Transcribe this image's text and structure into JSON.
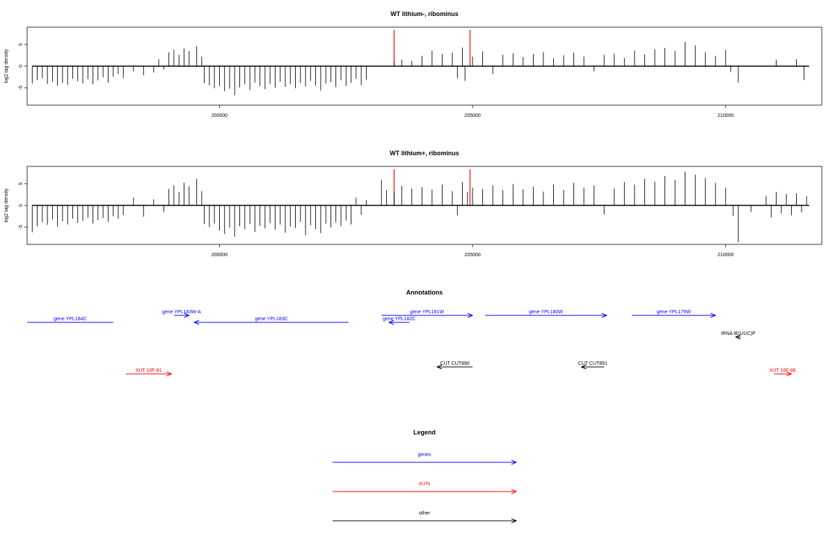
{
  "chart_data": [
    {
      "type": "bar",
      "title": "WT lithium-, ribominus",
      "xlabel": "",
      "ylabel": "log2 tag density",
      "xlim": [
        196200,
        211900
      ],
      "ylim": [
        -9,
        9
      ],
      "x_ticks": [
        200000,
        205000,
        210000
      ],
      "y_ticks": [
        5,
        0,
        -5
      ],
      "grid": false,
      "series": [
        {
          "bars": [
            [
              196300,
              -4
            ],
            [
              196400,
              -3.2
            ],
            [
              196500,
              -2.8
            ],
            [
              196600,
              -4.1
            ],
            [
              196700,
              -3.6
            ],
            [
              196800,
              -4.5
            ],
            [
              196900,
              -3.9
            ],
            [
              197000,
              -4.3
            ],
            [
              197100,
              -2.9
            ],
            [
              197200,
              -3.5
            ],
            [
              197300,
              -4
            ],
            [
              197400,
              -3
            ],
            [
              197500,
              -4.2
            ],
            [
              197600,
              -3.3
            ],
            [
              197700,
              -2.6
            ],
            [
              197800,
              -3.8
            ],
            [
              197900,
              -2.4
            ],
            [
              198000,
              -1.8
            ],
            [
              198100,
              -2.8
            ],
            [
              198300,
              -1.2
            ],
            [
              198500,
              -2.1
            ],
            [
              198700,
              -1.5
            ],
            [
              198900,
              -0.8
            ],
            [
              198800,
              1.6
            ],
            [
              199000,
              3.2
            ],
            [
              199100,
              3.8
            ],
            [
              199200,
              2.6
            ],
            [
              199300,
              4.1
            ],
            [
              199400,
              3.5
            ],
            [
              199550,
              4.6
            ],
            [
              199650,
              2.2
            ],
            [
              199700,
              -3.9
            ],
            [
              199800,
              -4.4
            ],
            [
              199900,
              -5.1
            ],
            [
              200000,
              -4.6
            ],
            [
              200100,
              -5.8
            ],
            [
              200200,
              -5.2
            ],
            [
              200300,
              -6.7
            ],
            [
              200400,
              -4.9
            ],
            [
              200500,
              -4.2
            ],
            [
              200600,
              -5.5
            ],
            [
              200700,
              -3.8
            ],
            [
              200800,
              -4.6
            ],
            [
              200900,
              -5.3
            ],
            [
              201000,
              -4.1
            ],
            [
              201100,
              -5
            ],
            [
              201200,
              -3.6
            ],
            [
              201300,
              -4.8
            ],
            [
              201400,
              -4.2
            ],
            [
              201500,
              -5.1
            ],
            [
              201600,
              -3.9
            ],
            [
              201700,
              -4.7
            ],
            [
              201800,
              -3.4
            ],
            [
              201900,
              -4.5
            ],
            [
              202000,
              -5.6
            ],
            [
              202100,
              -4
            ],
            [
              202200,
              -3.7
            ],
            [
              202300,
              -4.9
            ],
            [
              202400,
              -3.3
            ],
            [
              202500,
              -4.6
            ],
            [
              202600,
              -3.8
            ],
            [
              202700,
              -2.9
            ],
            [
              202800,
              -4.4
            ],
            [
              202900,
              -3.1
            ],
            [
              203450,
              1
            ],
            [
              203600,
              1.5
            ],
            [
              203800,
              1.2
            ],
            [
              204000,
              2.4
            ],
            [
              204200,
              3.6
            ],
            [
              204400,
              2.8
            ],
            [
              204600,
              3.1
            ],
            [
              204700,
              -2.8
            ],
            [
              204800,
              4.3
            ],
            [
              204850,
              -3.4
            ],
            [
              205000,
              2.2
            ],
            [
              205200,
              3.4
            ],
            [
              205400,
              -1.8
            ],
            [
              205600,
              2.6
            ],
            [
              205800,
              3
            ],
            [
              206000,
              2.1
            ],
            [
              206200,
              2.8
            ],
            [
              206400,
              3.2
            ],
            [
              206600,
              1.8
            ],
            [
              206800,
              2.5
            ],
            [
              207000,
              3.1
            ],
            [
              207200,
              2.2
            ],
            [
              207400,
              -1.2
            ],
            [
              207600,
              2.6
            ],
            [
              207800,
              2.9
            ],
            [
              208000,
              1.9
            ],
            [
              208200,
              3.6
            ],
            [
              208400,
              2.7
            ],
            [
              208600,
              3.9
            ],
            [
              208800,
              4.2
            ],
            [
              209000,
              3.5
            ],
            [
              209200,
              5.6
            ],
            [
              209400,
              4.8
            ],
            [
              209600,
              3.2
            ],
            [
              209800,
              2.4
            ],
            [
              210000,
              3.8
            ],
            [
              210100,
              -1.4
            ],
            [
              210250,
              -3.8
            ],
            [
              211000,
              1.5
            ],
            [
              211400,
              1.6
            ],
            [
              211550,
              -3.2
            ]
          ]
        }
      ],
      "markers": [
        203450,
        204950
      ]
    },
    {
      "type": "bar",
      "title": "WT lithium+, ribominus",
      "xlabel": "",
      "ylabel": "log2 tag density",
      "xlim": [
        196200,
        211900
      ],
      "ylim": [
        -9,
        9
      ],
      "x_ticks": [
        200000,
        205000,
        210000
      ],
      "y_ticks": [
        5,
        0,
        -5
      ],
      "grid": false,
      "series": [
        {
          "bars": [
            [
              196300,
              -6.2
            ],
            [
              196400,
              -4.8
            ],
            [
              196500,
              -3.9
            ],
            [
              196600,
              -4.5
            ],
            [
              196700,
              -3.2
            ],
            [
              196800,
              -4.9
            ],
            [
              196900,
              -3.7
            ],
            [
              197000,
              -4.4
            ],
            [
              197100,
              -3.1
            ],
            [
              197200,
              -4
            ],
            [
              197300,
              -3.6
            ],
            [
              197400,
              -2.8
            ],
            [
              197500,
              -4.2
            ],
            [
              197600,
              -3.4
            ],
            [
              197700,
              -2.9
            ],
            [
              197800,
              -3.8
            ],
            [
              197900,
              -2.5
            ],
            [
              198000,
              -3.1
            ],
            [
              198100,
              -2.2
            ],
            [
              198300,
              1.8
            ],
            [
              198500,
              -2.6
            ],
            [
              198700,
              1.4
            ],
            [
              198900,
              -1.5
            ],
            [
              199000,
              3.8
            ],
            [
              199100,
              4.6
            ],
            [
              199200,
              3.1
            ],
            [
              199300,
              5.2
            ],
            [
              199400,
              4.4
            ],
            [
              199550,
              6.1
            ],
            [
              199650,
              3.3
            ],
            [
              199700,
              -4.3
            ],
            [
              199800,
              -5
            ],
            [
              199900,
              -4.2
            ],
            [
              200000,
              -5.8
            ],
            [
              200100,
              -6.6
            ],
            [
              200200,
              -5.1
            ],
            [
              200300,
              -7.2
            ],
            [
              200400,
              -4.8
            ],
            [
              200500,
              -5.5
            ],
            [
              200600,
              -4.3
            ],
            [
              200700,
              -6.1
            ],
            [
              200800,
              -4.7
            ],
            [
              200900,
              -5.3
            ],
            [
              201000,
              -4.1
            ],
            [
              201100,
              -5.6
            ],
            [
              201200,
              -4.4
            ],
            [
              201300,
              -6.3
            ],
            [
              201400,
              -4.9
            ],
            [
              201500,
              -5.2
            ],
            [
              201600,
              -3.8
            ],
            [
              201700,
              -6.9
            ],
            [
              201800,
              -4.6
            ],
            [
              201900,
              -5.5
            ],
            [
              202000,
              -6.4
            ],
            [
              202100,
              -4.2
            ],
            [
              202200,
              -5.1
            ],
            [
              202300,
              -3.9
            ],
            [
              202400,
              -4.8
            ],
            [
              202500,
              -3.5
            ],
            [
              202600,
              -4.4
            ],
            [
              202700,
              1.8
            ],
            [
              202800,
              -2.2
            ],
            [
              202900,
              1.2
            ],
            [
              203200,
              5.9
            ],
            [
              203300,
              3.5
            ],
            [
              203450,
              3.1
            ],
            [
              203600,
              4.5
            ],
            [
              203800,
              3.9
            ],
            [
              204000,
              4.2
            ],
            [
              204200,
              3.6
            ],
            [
              204400,
              4.8
            ],
            [
              204600,
              3.3
            ],
            [
              204700,
              -2.3
            ],
            [
              204800,
              5.4
            ],
            [
              204900,
              3.1
            ],
            [
              205000,
              4.1
            ],
            [
              205200,
              3.8
            ],
            [
              205400,
              4.6
            ],
            [
              205600,
              3.5
            ],
            [
              205800,
              4.9
            ],
            [
              206000,
              3.7
            ],
            [
              206200,
              4.3
            ],
            [
              206400,
              3.2
            ],
            [
              206600,
              4.8
            ],
            [
              206800,
              3.6
            ],
            [
              207000,
              5.2
            ],
            [
              207200,
              4.1
            ],
            [
              207400,
              4.6
            ],
            [
              207600,
              -2.1
            ],
            [
              207800,
              3.9
            ],
            [
              208000,
              5.4
            ],
            [
              208200,
              4.8
            ],
            [
              208400,
              6.1
            ],
            [
              208600,
              5.5
            ],
            [
              208800,
              6.8
            ],
            [
              209000,
              5.9
            ],
            [
              209200,
              7.8
            ],
            [
              209400,
              7.1
            ],
            [
              209600,
              6.3
            ],
            [
              209800,
              5.2
            ],
            [
              210000,
              4.1
            ],
            [
              210150,
              -2.4
            ],
            [
              210250,
              -8.5
            ],
            [
              210500,
              -1.5
            ],
            [
              210800,
              2.2
            ],
            [
              210900,
              -2.8
            ],
            [
              211000,
              3.1
            ],
            [
              211100,
              -1.8
            ],
            [
              211200,
              2.6
            ],
            [
              211300,
              -2.3
            ],
            [
              211400,
              2.8
            ],
            [
              211500,
              -1.6
            ],
            [
              211600,
              2.1
            ]
          ]
        }
      ],
      "markers": [
        203450,
        204950
      ]
    }
  ],
  "annotations": {
    "title": "Annotations",
    "features": [
      {
        "label": "gene YPL184C",
        "color": "#0000ff",
        "x1": 196200,
        "x2": 197900,
        "dir": "none",
        "row": 1
      },
      {
        "label": "gene YPL183W-A",
        "color": "#0000ff",
        "x1": 199100,
        "x2": 199400,
        "dir": "right",
        "row": 0
      },
      {
        "label": "gene YPL183C",
        "color": "#0000ff",
        "x1": 199500,
        "x2": 202550,
        "dir": "left",
        "row": 1
      },
      {
        "label": "gene YPL181W",
        "color": "#0000ff",
        "x1": 203200,
        "x2": 205000,
        "dir": "right",
        "row": 0
      },
      {
        "label": "gene YPL182C",
        "color": "#0000ff",
        "x1": 203350,
        "x2": 203750,
        "dir": "left",
        "row": 1
      },
      {
        "label": "gene YPL180W",
        "color": "#0000ff",
        "x1": 205250,
        "x2": 207650,
        "dir": "right",
        "row": 0
      },
      {
        "label": "gene YPL179W",
        "color": "#0000ff",
        "x1": 208150,
        "x2": 209800,
        "dir": "right",
        "row": 0
      },
      {
        "label": "tRNA tE(UUC)P",
        "color": "#000000",
        "x1": 210200,
        "x2": 210300,
        "dir": "left",
        "row": 2
      },
      {
        "label": "XUT 16F-81",
        "color": "#ff0000",
        "x1": 198150,
        "x2": 199050,
        "dir": "right",
        "row": 4
      },
      {
        "label": "CUT CUT890",
        "color": "#000000",
        "x1": 204300,
        "x2": 205000,
        "dir": "left",
        "row": 3
      },
      {
        "label": "CUT CUT891",
        "color": "#000000",
        "x1": 207150,
        "x2": 207600,
        "dir": "left",
        "row": 3
      },
      {
        "label": "XUT 16F-86",
        "color": "#ff0000",
        "x1": 210950,
        "x2": 211300,
        "dir": "right",
        "row": 4
      }
    ]
  },
  "legend": {
    "title": "Legend",
    "items": [
      {
        "label": "genes",
        "color": "#0000ff"
      },
      {
        "label": "XUTs",
        "color": "#ff0000"
      },
      {
        "label": "other",
        "color": "#000000"
      }
    ]
  }
}
